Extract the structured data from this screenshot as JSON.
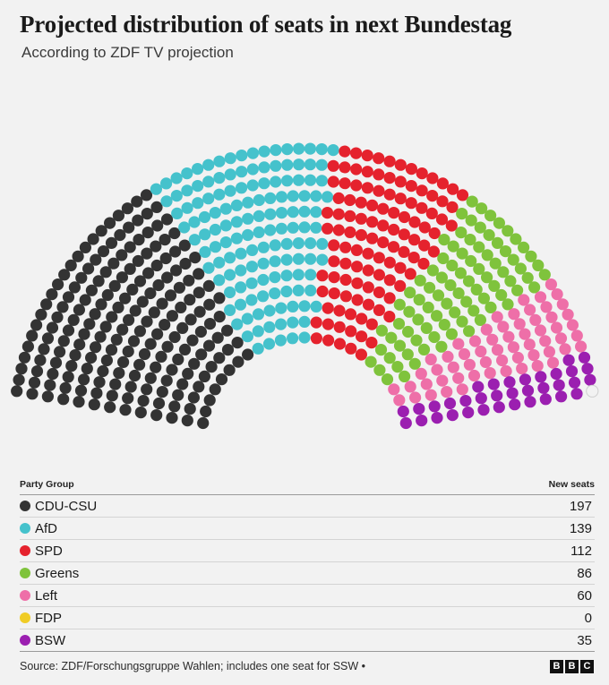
{
  "header": {
    "title": "Projected distribution of seats in next Bundestag",
    "subtitle": "According to ZDF TV projection"
  },
  "table": {
    "col_party": "Party Group",
    "col_seats": "New seats",
    "rows": [
      {
        "party": "CDU-CSU",
        "seats": "197",
        "color": "#333333"
      },
      {
        "party": "AfD",
        "seats": "139",
        "color": "#45c2cc"
      },
      {
        "party": "SPD",
        "seats": "112",
        "color": "#e5222d"
      },
      {
        "party": "Greens",
        "seats": "86",
        "color": "#7fc33c"
      },
      {
        "party": "Left",
        "seats": "60",
        "color": "#ee6fa8"
      },
      {
        "party": "FDP",
        "seats": "0",
        "color": "#f0cc26"
      },
      {
        "party": "BSW",
        "seats": "35",
        "color": "#9b1fb0"
      }
    ]
  },
  "footer": {
    "source": "Source: ZDF/Forschungsgruppe Wahlen; includes one seat for SSW •",
    "logo": [
      "B",
      "B",
      "C"
    ]
  },
  "chart_data": {
    "type": "parliament",
    "total_seats": 630,
    "series": [
      {
        "name": "CDU-CSU",
        "value": 197,
        "color": "#333333"
      },
      {
        "name": "AfD",
        "value": 139,
        "color": "#45c2cc"
      },
      {
        "name": "SPD",
        "value": 112,
        "color": "#e5222d"
      },
      {
        "name": "Greens",
        "value": 86,
        "color": "#7fc33c"
      },
      {
        "name": "Left",
        "value": 60,
        "color": "#ee6fa8"
      },
      {
        "name": "FDP",
        "value": 0,
        "color": "#f0cc26"
      },
      {
        "name": "BSW",
        "value": 35,
        "color": "#9b1fb0"
      },
      {
        "name": "SSW",
        "value": 1,
        "color": "#f2f2f2"
      }
    ]
  }
}
